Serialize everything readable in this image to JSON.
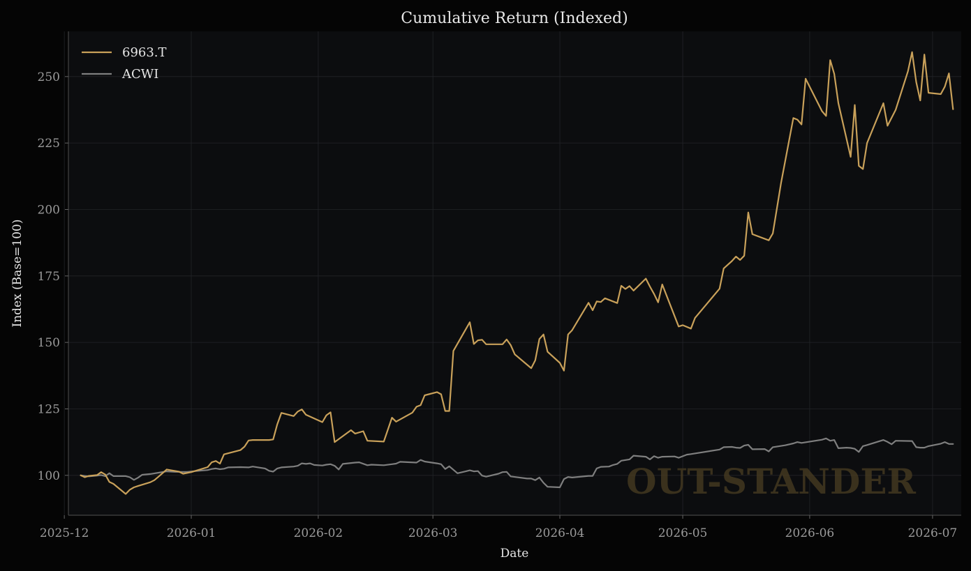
{
  "chart_data": {
    "type": "line",
    "title": "Cumulative Return (Indexed)",
    "xlabel": "Date",
    "ylabel": "Index (Base=100)",
    "ylim": [
      85,
      267
    ],
    "xlim": [
      "2025-12-02",
      "2026-07-08"
    ],
    "x_ticks": [
      "2025-12",
      "2026-01",
      "2026-02",
      "2026-03",
      "2026-04",
      "2026-05",
      "2026-06",
      "2026-07"
    ],
    "y_ticks": [
      100,
      125,
      150,
      175,
      200,
      225,
      250
    ],
    "grid": true,
    "legend": "top-left",
    "watermark": "OUT-STANDER",
    "series": [
      {
        "name": "6963.T",
        "color": "#c9a15a",
        "points": [
          [
            "2025-12-05",
            100
          ],
          [
            "2025-12-06",
            99.3
          ],
          [
            "2025-12-07",
            99.8
          ],
          [
            "2025-12-09",
            100.1
          ],
          [
            "2025-12-10",
            101.2
          ],
          [
            "2025-12-11",
            100.3
          ],
          [
            "2025-12-12",
            97.5
          ],
          [
            "2025-12-13",
            96.8
          ],
          [
            "2025-12-16",
            93
          ],
          [
            "2025-12-17",
            94.6
          ],
          [
            "2025-12-18",
            95.5
          ],
          [
            "2025-12-19",
            96
          ],
          [
            "2025-12-22",
            97.4
          ],
          [
            "2025-12-23",
            98.2
          ],
          [
            "2025-12-24",
            99.5
          ],
          [
            "2025-12-26",
            102.2
          ],
          [
            "2025-12-29",
            101.4
          ],
          [
            "2025-12-30",
            100.6
          ],
          [
            "2026-01-01",
            101.2
          ],
          [
            "2026-01-05",
            103.1
          ],
          [
            "2026-01-06",
            104.9
          ],
          [
            "2026-01-07",
            105.4
          ],
          [
            "2026-01-08",
            104.4
          ],
          [
            "2026-01-09",
            107.9
          ],
          [
            "2026-01-13",
            109.5
          ],
          [
            "2026-01-14",
            110.8
          ],
          [
            "2026-01-15",
            113.1
          ],
          [
            "2026-01-16",
            113.3
          ],
          [
            "2026-01-19",
            113.3
          ],
          [
            "2026-01-20",
            113.3
          ],
          [
            "2026-01-21",
            113.5
          ],
          [
            "2026-01-22",
            119.2
          ],
          [
            "2026-01-23",
            123.5
          ],
          [
            "2026-01-26",
            122.3
          ],
          [
            "2026-01-27",
            124
          ],
          [
            "2026-01-28",
            124.8
          ],
          [
            "2026-01-29",
            122.8
          ],
          [
            "2026-02-02",
            120
          ],
          [
            "2026-02-03",
            122.6
          ],
          [
            "2026-02-04",
            123.7
          ],
          [
            "2026-02-05",
            112.5
          ],
          [
            "2026-02-06",
            113.6
          ],
          [
            "2026-02-09",
            117
          ],
          [
            "2026-02-10",
            115.7
          ],
          [
            "2026-02-12",
            116.6
          ],
          [
            "2026-02-13",
            113
          ],
          [
            "2026-02-17",
            112.7
          ],
          [
            "2026-02-19",
            121.7
          ],
          [
            "2026-02-20",
            120.2
          ],
          [
            "2026-02-24",
            123.6
          ],
          [
            "2026-02-25",
            125.8
          ],
          [
            "2026-02-26",
            126.4
          ],
          [
            "2026-02-27",
            130.1
          ],
          [
            "2026-03-02",
            131.3
          ],
          [
            "2026-03-03",
            130.5
          ],
          [
            "2026-03-04",
            124.2
          ],
          [
            "2026-03-05",
            124.2
          ],
          [
            "2026-03-06",
            146.8
          ],
          [
            "2026-03-10",
            157.6
          ],
          [
            "2026-03-11",
            149.4
          ],
          [
            "2026-03-12",
            150.8
          ],
          [
            "2026-03-13",
            151
          ],
          [
            "2026-03-14",
            149.3
          ],
          [
            "2026-03-18",
            149.3
          ],
          [
            "2026-03-19",
            151.1
          ],
          [
            "2026-03-20",
            149
          ],
          [
            "2026-03-21",
            145.5
          ],
          [
            "2026-03-25",
            140.3
          ],
          [
            "2026-03-26",
            143.3
          ],
          [
            "2026-03-27",
            151.3
          ],
          [
            "2026-03-28",
            153
          ],
          [
            "2026-03-29",
            146.5
          ],
          [
            "2026-04-01",
            142.3
          ],
          [
            "2026-04-02",
            139.4
          ],
          [
            "2026-04-03",
            153
          ],
          [
            "2026-04-04",
            154.6
          ],
          [
            "2026-04-08",
            164.9
          ],
          [
            "2026-04-09",
            162.1
          ],
          [
            "2026-04-10",
            165.4
          ],
          [
            "2026-04-11",
            165.2
          ],
          [
            "2026-04-12",
            166.6
          ],
          [
            "2026-04-15",
            164.8
          ],
          [
            "2026-04-16",
            171.3
          ],
          [
            "2026-04-17",
            170.1
          ],
          [
            "2026-04-18",
            171.2
          ],
          [
            "2026-04-19",
            169.5
          ],
          [
            "2026-04-22",
            174
          ],
          [
            "2026-04-23",
            171
          ],
          [
            "2026-04-24",
            168.2
          ],
          [
            "2026-04-25",
            165.1
          ],
          [
            "2026-04-26",
            171.8
          ],
          [
            "2026-04-30",
            156
          ],
          [
            "2026-05-01",
            156.5
          ],
          [
            "2026-05-03",
            155.2
          ],
          [
            "2026-05-04",
            159.2
          ],
          [
            "2026-05-10",
            170.2
          ],
          [
            "2026-05-11",
            177.8
          ],
          [
            "2026-05-13",
            180.6
          ],
          [
            "2026-05-14",
            182.3
          ],
          [
            "2026-05-15",
            181
          ],
          [
            "2026-05-16",
            182.6
          ],
          [
            "2026-05-17",
            198.9
          ],
          [
            "2026-05-18",
            190.7
          ],
          [
            "2026-05-22",
            188.4
          ],
          [
            "2026-05-23",
            191
          ],
          [
            "2026-05-25",
            210
          ],
          [
            "2026-05-28",
            234.4
          ],
          [
            "2026-05-29",
            233.8
          ],
          [
            "2026-05-30",
            232
          ],
          [
            "2026-05-31",
            249.2
          ],
          [
            "2026-06-04",
            237
          ],
          [
            "2026-06-05",
            235.2
          ],
          [
            "2026-06-06",
            256.2
          ],
          [
            "2026-06-07",
            251
          ],
          [
            "2026-06-08",
            240
          ],
          [
            "2026-06-11",
            219.8
          ],
          [
            "2026-06-12",
            239.3
          ],
          [
            "2026-06-13",
            216.4
          ],
          [
            "2026-06-14",
            215.2
          ],
          [
            "2026-06-15",
            225
          ],
          [
            "2026-06-19",
            240
          ],
          [
            "2026-06-20",
            231.5
          ],
          [
            "2026-06-22",
            237.5
          ],
          [
            "2026-06-25",
            252
          ],
          [
            "2026-06-26",
            259.2
          ],
          [
            "2026-06-27",
            248
          ],
          [
            "2026-06-28",
            241
          ],
          [
            "2026-06-29",
            258.3
          ],
          [
            "2026-06-30",
            243.9
          ],
          [
            "2026-07-03",
            243.4
          ],
          [
            "2026-07-04",
            246.2
          ],
          [
            "2026-07-05",
            251.2
          ],
          [
            "2026-07-06",
            237.7
          ]
        ]
      },
      {
        "name": "ACWI",
        "color": "#7f7f7f",
        "points": [
          [
            "2025-12-05",
            100
          ],
          [
            "2025-12-07",
            99.6
          ],
          [
            "2025-12-09",
            99.9
          ],
          [
            "2025-12-10",
            100.1
          ],
          [
            "2025-12-11",
            99.7
          ],
          [
            "2025-12-12",
            100.8
          ],
          [
            "2025-12-13",
            99.7
          ],
          [
            "2025-12-16",
            99.7
          ],
          [
            "2025-12-17",
            99.3
          ],
          [
            "2025-12-18",
            98.3
          ],
          [
            "2025-12-19",
            99.1
          ],
          [
            "2025-12-20",
            100.2
          ],
          [
            "2025-12-22",
            100.5
          ],
          [
            "2025-12-24",
            101
          ],
          [
            "2025-12-26",
            101.5
          ],
          [
            "2025-12-28",
            101.3
          ],
          [
            "2025-12-31",
            101.3
          ],
          [
            "2026-01-02",
            101.6
          ],
          [
            "2026-01-05",
            102
          ],
          [
            "2026-01-06",
            102.4
          ],
          [
            "2026-01-07",
            102.6
          ],
          [
            "2026-01-08",
            102.3
          ],
          [
            "2026-01-09",
            102.5
          ],
          [
            "2026-01-10",
            103
          ],
          [
            "2026-01-13",
            103.1
          ],
          [
            "2026-01-15",
            103
          ],
          [
            "2026-01-16",
            103.3
          ],
          [
            "2026-01-19",
            102.6
          ],
          [
            "2026-01-20",
            101.7
          ],
          [
            "2026-01-21",
            101.4
          ],
          [
            "2026-01-22",
            102.6
          ],
          [
            "2026-01-23",
            103
          ],
          [
            "2026-01-26",
            103.3
          ],
          [
            "2026-01-27",
            103.6
          ],
          [
            "2026-01-28",
            104.5
          ],
          [
            "2026-01-29",
            104.3
          ],
          [
            "2026-01-30",
            104.5
          ],
          [
            "2026-01-31",
            103.9
          ],
          [
            "2026-02-02",
            103.7
          ],
          [
            "2026-02-03",
            104
          ],
          [
            "2026-02-04",
            104.2
          ],
          [
            "2026-02-05",
            103.6
          ],
          [
            "2026-02-06",
            102.2
          ],
          [
            "2026-02-07",
            104.3
          ],
          [
            "2026-02-10",
            104.8
          ],
          [
            "2026-02-11",
            104.9
          ],
          [
            "2026-02-13",
            103.8
          ],
          [
            "2026-02-14",
            104
          ],
          [
            "2026-02-17",
            103.8
          ],
          [
            "2026-02-19",
            104.2
          ],
          [
            "2026-02-20",
            104.4
          ],
          [
            "2026-02-21",
            105.1
          ],
          [
            "2026-02-25",
            104.8
          ],
          [
            "2026-02-26",
            105.8
          ],
          [
            "2026-02-27",
            105.2
          ],
          [
            "2026-03-02",
            104.5
          ],
          [
            "2026-03-03",
            104.2
          ],
          [
            "2026-03-04",
            102.4
          ],
          [
            "2026-03-05",
            103.4
          ],
          [
            "2026-03-07",
            100.8
          ],
          [
            "2026-03-09",
            101.5
          ],
          [
            "2026-03-10",
            101.9
          ],
          [
            "2026-03-11",
            101.5
          ],
          [
            "2026-03-12",
            101.6
          ],
          [
            "2026-03-13",
            99.9
          ],
          [
            "2026-03-14",
            99.5
          ],
          [
            "2026-03-17",
            100.6
          ],
          [
            "2026-03-18",
            101.2
          ],
          [
            "2026-03-19",
            101.3
          ],
          [
            "2026-03-20",
            99.6
          ],
          [
            "2026-03-24",
            98.8
          ],
          [
            "2026-03-25",
            98.8
          ],
          [
            "2026-03-26",
            98.2
          ],
          [
            "2026-03-27",
            99.2
          ],
          [
            "2026-03-28",
            97.2
          ],
          [
            "2026-03-29",
            95.7
          ],
          [
            "2026-04-01",
            95.5
          ],
          [
            "2026-04-02",
            98.6
          ],
          [
            "2026-04-03",
            99.4
          ],
          [
            "2026-04-04",
            99.2
          ],
          [
            "2026-04-08",
            99.8
          ],
          [
            "2026-04-09",
            99.8
          ],
          [
            "2026-04-10",
            102.6
          ],
          [
            "2026-04-11",
            103.2
          ],
          [
            "2026-04-13",
            103.3
          ],
          [
            "2026-04-14",
            103.9
          ],
          [
            "2026-04-15",
            104.3
          ],
          [
            "2026-04-16",
            105.5
          ],
          [
            "2026-04-18",
            106
          ],
          [
            "2026-04-19",
            107.4
          ],
          [
            "2026-04-22",
            107
          ],
          [
            "2026-04-23",
            106
          ],
          [
            "2026-04-24",
            107.2
          ],
          [
            "2026-04-25",
            106.6
          ],
          [
            "2026-04-26",
            107
          ],
          [
            "2026-04-29",
            107.1
          ],
          [
            "2026-04-30",
            106.6
          ],
          [
            "2026-05-02",
            107.8
          ],
          [
            "2026-05-03",
            108
          ],
          [
            "2026-05-10",
            109.7
          ],
          [
            "2026-05-11",
            110.6
          ],
          [
            "2026-05-13",
            110.7
          ],
          [
            "2026-05-14",
            110.4
          ],
          [
            "2026-05-15",
            110.3
          ],
          [
            "2026-05-16",
            111.2
          ],
          [
            "2026-05-17",
            111.5
          ],
          [
            "2026-05-18",
            109.8
          ],
          [
            "2026-05-21",
            109.9
          ],
          [
            "2026-05-22",
            109
          ],
          [
            "2026-05-23",
            110.6
          ],
          [
            "2026-05-26",
            111.3
          ],
          [
            "2026-05-28",
            112
          ],
          [
            "2026-05-29",
            112.5
          ],
          [
            "2026-05-30",
            112.2
          ],
          [
            "2026-06-04",
            113.4
          ],
          [
            "2026-06-05",
            113.9
          ],
          [
            "2026-06-06",
            113
          ],
          [
            "2026-06-07",
            113.3
          ],
          [
            "2026-06-08",
            110.2
          ],
          [
            "2026-06-10",
            110.4
          ],
          [
            "2026-06-11",
            110.3
          ],
          [
            "2026-06-12",
            110
          ],
          [
            "2026-06-13",
            108.8
          ],
          [
            "2026-06-14",
            111
          ],
          [
            "2026-06-15",
            111.4
          ],
          [
            "2026-06-19",
            113.3
          ],
          [
            "2026-06-20",
            112.6
          ],
          [
            "2026-06-21",
            111.7
          ],
          [
            "2026-06-22",
            113
          ],
          [
            "2026-06-26",
            112.9
          ],
          [
            "2026-06-27",
            110.6
          ],
          [
            "2026-06-28",
            110.4
          ],
          [
            "2026-06-29",
            110.4
          ],
          [
            "2026-06-30",
            111
          ],
          [
            "2026-07-03",
            111.9
          ],
          [
            "2026-07-04",
            112.5
          ],
          [
            "2026-07-05",
            111.8
          ],
          [
            "2026-07-06",
            111.8
          ]
        ]
      }
    ]
  }
}
